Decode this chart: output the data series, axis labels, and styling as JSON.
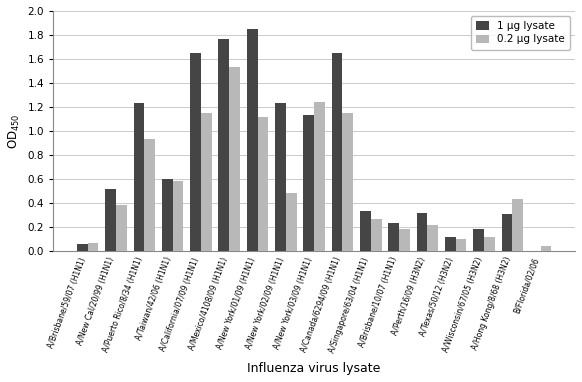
{
  "categories": [
    "A/Brisbane/59/07 (H1N1)",
    "A/New Cal/20/99 (H1N1)",
    "A/Puerto Rico/8/34 (H1N1)",
    "A/Taiwan/42/06 (H1N1)",
    "A/California/07/09 (H1N1)",
    "A/Mexico/4108/09 (H1N1)",
    "A/New York/01/09 (H1N1)",
    "A/New York/02/09 (H1N1)",
    "A/New York/03/09 (H1N1)",
    "A/Canada/6294/09 (H1N1)",
    "A/Singapore/63/04 (H1N1)",
    "A/Brisbane/10/07 (H1N1)",
    "A/Perth/16/09 (H3N2)",
    "A/Texas/50/12 (H3N2)",
    "A/Wisconsin/67/05 (H3N2)",
    "A/Hong Kong/8/68 (H3N2)",
    "B/Florida/02/06"
  ],
  "values_1ug": [
    0.06,
    0.52,
    1.23,
    0.6,
    1.65,
    1.77,
    1.85,
    1.23,
    1.13,
    1.65,
    0.33,
    0.23,
    0.32,
    0.12,
    0.18,
    0.31,
    0.0
  ],
  "values_02ug": [
    0.07,
    0.38,
    0.93,
    0.58,
    1.15,
    1.53,
    1.12,
    0.48,
    1.24,
    1.15,
    0.27,
    0.18,
    0.22,
    0.1,
    0.12,
    0.43,
    0.04
  ],
  "color_1ug": "#454545",
  "color_02ug": "#b8b8b8",
  "ylabel": "OD$_{450}$",
  "xlabel": "Influenza virus lysate",
  "ylim": [
    0,
    2.0
  ],
  "yticks": [
    0,
    0.2,
    0.4,
    0.6,
    0.8,
    1.0,
    1.2,
    1.4,
    1.6,
    1.8,
    2.0
  ],
  "legend_1ug": "1 μg lysate",
  "legend_02ug": "0.2 μg lysate",
  "background_color": "#ffffff",
  "grid_color": "#cccccc"
}
